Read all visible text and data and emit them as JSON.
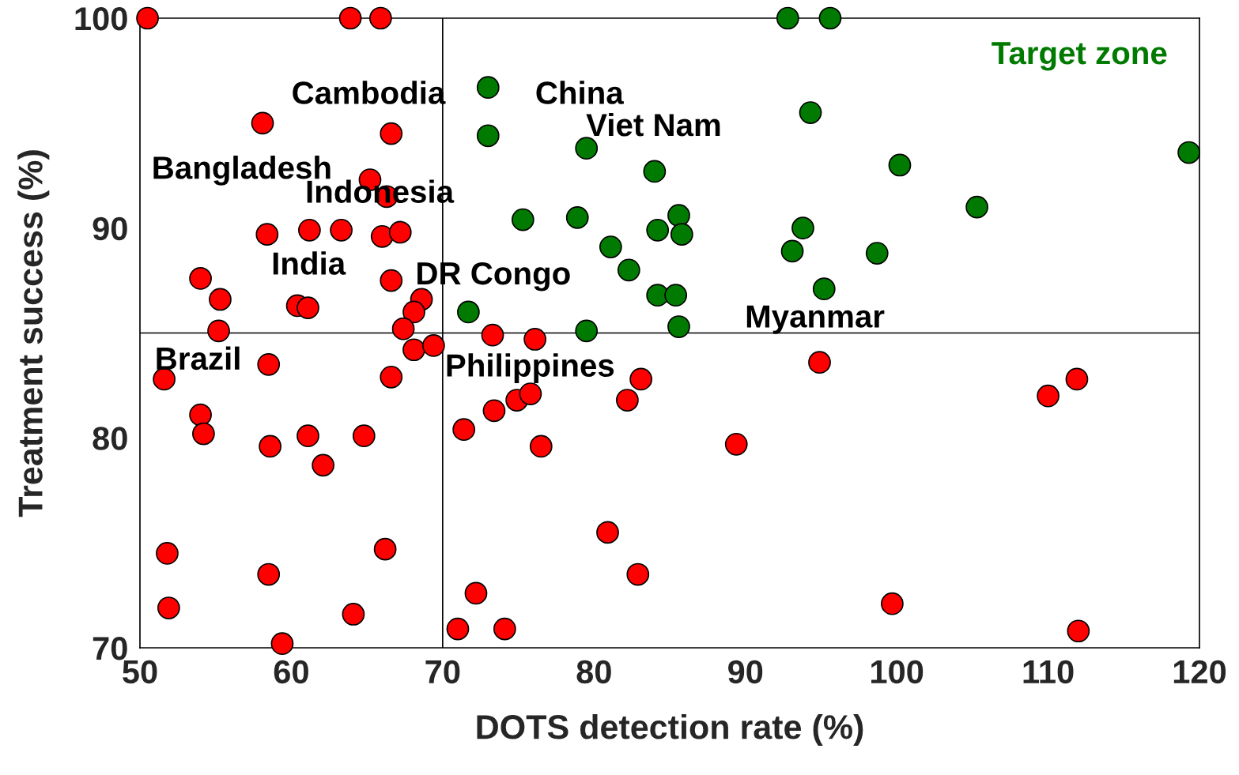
{
  "chart_data": {
    "type": "scatter",
    "xlabel": "DOTS detection rate (%)",
    "ylabel": "Treatment success (%)",
    "xlim": [
      50,
      120
    ],
    "xticks": [
      50,
      60,
      70,
      80,
      90,
      100,
      110,
      120
    ],
    "ylim": [
      70,
      100
    ],
    "yticks": [
      70,
      80,
      90,
      100
    ],
    "grid": false,
    "legend": false,
    "marker": "circle",
    "ref_lines": [
      {
        "axis": "x",
        "value": 70,
        "color": "#000000"
      },
      {
        "axis": "y",
        "value": 85,
        "color": "#000000"
      }
    ],
    "series": [
      {
        "color": "#ff0000",
        "x": [
          50.5,
          63.9,
          65.9,
          58.1,
          66.6,
          65.2,
          66.3,
          58.4,
          61.2,
          63.3,
          66.0,
          67.2,
          54.0,
          55.3,
          60.4,
          61.1,
          66.6,
          68.6,
          68.1,
          67.4,
          55.2,
          73.3,
          76.1,
          68.1,
          69.4,
          58.5,
          51.6,
          66.6,
          54.0,
          54.2,
          61.1,
          64.8,
          58.6,
          62.1,
          71.4,
          73.4,
          74.9,
          75.8,
          76.5,
          83.1,
          82.2,
          89.4,
          94.9,
          110.0,
          111.9,
          51.8,
          66.2,
          58.5,
          51.9,
          64.1,
          72.2,
          59.4,
          71.0,
          74.1,
          80.9,
          82.9,
          99.7,
          112.0
        ],
        "values": [
          100,
          100,
          100,
          95.0,
          94.5,
          92.3,
          91.5,
          89.7,
          89.9,
          89.9,
          89.6,
          89.8,
          87.6,
          86.6,
          86.3,
          86.2,
          87.5,
          86.6,
          86.0,
          85.2,
          85.1,
          84.9,
          84.7,
          84.2,
          84.4,
          83.5,
          82.8,
          82.9,
          81.1,
          80.2,
          80.1,
          80.1,
          79.6,
          78.7,
          80.4,
          81.3,
          81.8,
          82.1,
          79.6,
          82.8,
          81.8,
          79.7,
          83.6,
          82.0,
          82.8,
          74.5,
          74.7,
          73.5,
          71.9,
          71.6,
          72.6,
          70.2,
          70.9,
          70.9,
          75.5,
          73.5,
          72.1,
          70.8
        ]
      },
      {
        "color": "#007a00",
        "x": [
          73.0,
          73.0,
          79.5,
          84.0,
          92.8,
          95.6,
          94.3,
          100.2,
          105.3,
          119.3,
          75.3,
          78.9,
          85.6,
          84.2,
          85.8,
          93.8,
          93.1,
          98.7,
          81.1,
          82.3,
          84.2,
          85.4,
          95.2,
          71.7,
          79.5,
          85.6
        ],
        "values": [
          96.7,
          94.4,
          93.8,
          92.7,
          100,
          100,
          95.5,
          93.0,
          91.0,
          93.6,
          90.4,
          90.5,
          90.6,
          89.9,
          89.7,
          90.0,
          88.9,
          88.8,
          89.1,
          88.0,
          86.8,
          86.8,
          87.1,
          86.0,
          85.1,
          85.3
        ]
      }
    ],
    "annotations": [
      "Cambodia",
      "China",
      "Viet Nam",
      "Bangladesh",
      "Indonesia",
      "India",
      "DR Congo",
      "Myanmar",
      "Philippines",
      "Brazil",
      "Target zone"
    ]
  }
}
